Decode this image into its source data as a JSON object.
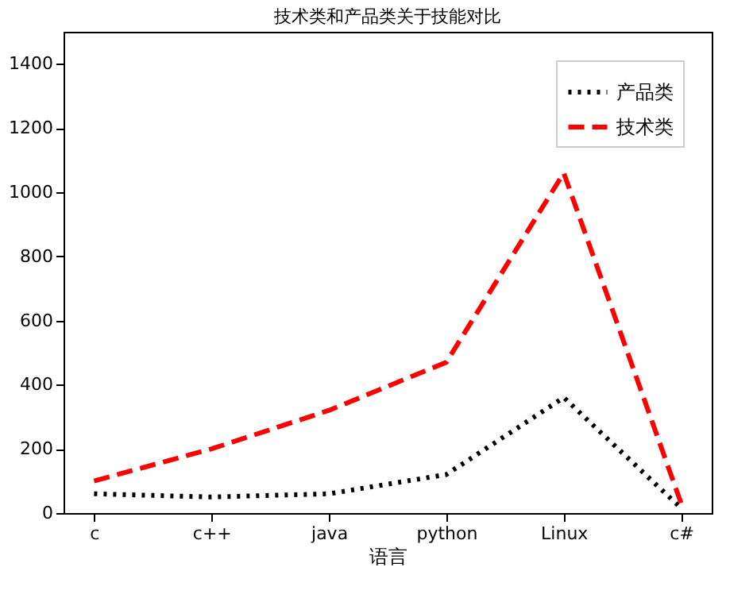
{
  "chart_data": {
    "type": "line",
    "title": "技术类和产品类关于技能对比",
    "xlabel": "语言",
    "categories": [
      "c",
      "c++",
      "java",
      "python",
      "Linux",
      "c#"
    ],
    "series": [
      {
        "name": "产品类",
        "color": "#000000",
        "line_style": "dotted",
        "values": [
          60,
          50,
          60,
          120,
          360,
          15
        ]
      },
      {
        "name": "技术类",
        "color": "#ff0000",
        "line_style": "dashed",
        "values": [
          100,
          200,
          320,
          470,
          1060,
          30
        ]
      }
    ],
    "ylim": [
      0,
      1500
    ],
    "yticks": [
      0,
      200,
      400,
      600,
      800,
      1000,
      1200,
      1400
    ],
    "grid": false,
    "legend": "top right",
    "marker": "none"
  }
}
